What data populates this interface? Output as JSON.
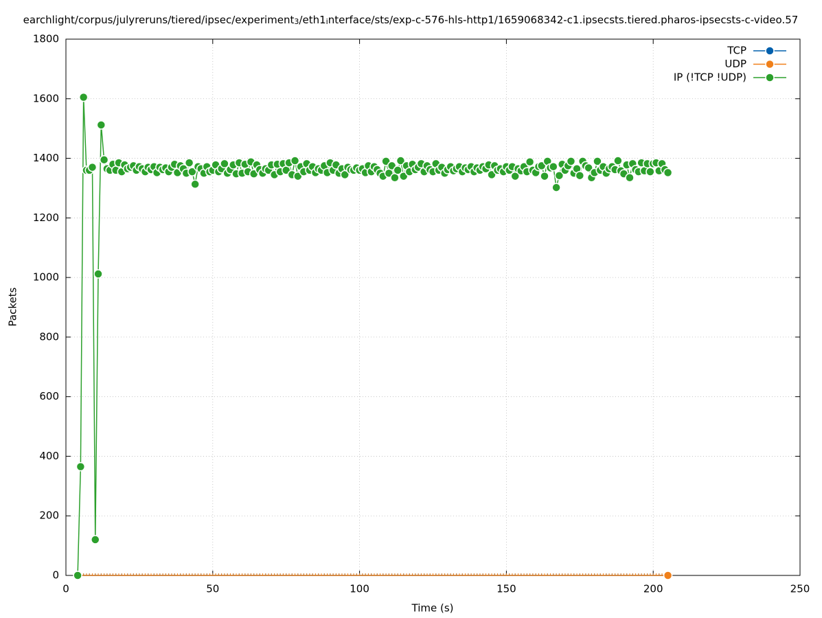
{
  "chart_data": {
    "type": "line",
    "title_parts": [
      "earchlight/corpus/julyreruns/tiered/ipsec/experiment",
      "3",
      "/eth1",
      "i",
      "nterface/sts/exp-c-576-hls-http1/1659068342-c1.ipsecsts.tiered.pharos-ipsecsts-c-video.57"
    ],
    "xlabel": "Time (s)",
    "ylabel": "Packets",
    "xlim": [
      0,
      250
    ],
    "xticks": [
      0,
      50,
      100,
      150,
      200,
      250
    ],
    "ylim": [
      0,
      1800
    ],
    "yticks": [
      0,
      200,
      400,
      600,
      800,
      1000,
      1200,
      1400,
      1600,
      1800
    ],
    "grid": true,
    "legend": "top-right",
    "x": [
      4,
      5,
      6,
      7,
      8,
      9,
      10,
      11,
      12,
      13,
      14,
      15,
      16,
      17,
      18,
      19,
      20,
      21,
      22,
      23,
      24,
      25,
      26,
      27,
      28,
      29,
      30,
      31,
      32,
      33,
      34,
      35,
      36,
      37,
      38,
      39,
      40,
      41,
      42,
      43,
      44,
      45,
      46,
      47,
      48,
      49,
      50,
      51,
      52,
      53,
      54,
      55,
      56,
      57,
      58,
      59,
      60,
      61,
      62,
      63,
      64,
      65,
      66,
      67,
      68,
      69,
      70,
      71,
      72,
      73,
      74,
      75,
      76,
      77,
      78,
      79,
      80,
      81,
      82,
      83,
      84,
      85,
      86,
      87,
      88,
      89,
      90,
      91,
      92,
      93,
      94,
      95,
      96,
      97,
      98,
      99,
      100,
      101,
      102,
      103,
      104,
      105,
      106,
      107,
      108,
      109,
      110,
      111,
      112,
      113,
      114,
      115,
      116,
      117,
      118,
      119,
      120,
      121,
      122,
      123,
      124,
      125,
      126,
      127,
      128,
      129,
      130,
      131,
      132,
      133,
      134,
      135,
      136,
      137,
      138,
      139,
      140,
      141,
      142,
      143,
      144,
      145,
      146,
      147,
      148,
      149,
      150,
      151,
      152,
      153,
      154,
      155,
      156,
      157,
      158,
      159,
      160,
      161,
      162,
      163,
      164,
      165,
      166,
      167,
      168,
      169,
      170,
      171,
      172,
      173,
      174,
      175,
      176,
      177,
      178,
      179,
      180,
      181,
      182,
      183,
      184,
      185,
      186,
      187,
      188,
      189,
      190,
      191,
      192,
      193,
      194,
      195,
      196,
      197,
      198,
      199,
      200,
      201,
      202,
      203,
      204,
      205
    ],
    "series": [
      {
        "name": "TCP",
        "color": "#0060ad",
        "values": [
          0,
          0,
          0,
          0,
          0,
          0,
          0,
          0,
          0,
          0,
          0,
          0,
          0,
          0,
          0,
          0,
          0,
          0,
          0,
          0,
          0,
          0,
          0,
          0,
          0,
          0,
          0,
          0,
          0,
          0,
          0,
          0,
          0,
          0,
          0,
          0,
          0,
          0,
          0,
          0,
          0,
          0,
          0,
          0,
          0,
          0,
          0,
          0,
          0,
          0,
          0,
          0,
          0,
          0,
          0,
          0,
          0,
          0,
          0,
          0,
          0,
          0,
          0,
          0,
          0,
          0,
          0,
          0,
          0,
          0,
          0,
          0,
          0,
          0,
          0,
          0,
          0,
          0,
          0,
          0,
          0,
          0,
          0,
          0,
          0,
          0,
          0,
          0,
          0,
          0,
          0,
          0,
          0,
          0,
          0,
          0,
          0,
          0,
          0,
          0,
          0,
          0,
          0,
          0,
          0,
          0,
          0,
          0,
          0,
          0,
          0,
          0,
          0,
          0,
          0,
          0,
          0,
          0,
          0,
          0,
          0,
          0,
          0,
          0,
          0,
          0,
          0,
          0,
          0,
          0,
          0,
          0,
          0,
          0,
          0,
          0,
          0,
          0,
          0,
          0,
          0,
          0,
          0,
          0,
          0,
          0,
          0,
          0,
          0,
          0,
          0,
          0,
          0,
          0,
          0,
          0,
          0,
          0,
          0,
          0,
          0,
          0,
          0,
          0,
          0,
          0,
          0,
          0,
          0,
          0,
          0,
          0,
          0,
          0,
          0,
          0,
          0,
          0,
          0,
          0,
          0,
          0,
          0,
          0,
          0,
          0,
          0,
          0,
          0,
          0,
          0,
          0,
          0,
          0,
          0,
          0,
          0,
          0,
          0,
          0,
          0,
          0
        ]
      },
      {
        "name": "UDP",
        "color": "#f0801a",
        "values": [
          0,
          0,
          0,
          0,
          0,
          0,
          0,
          0,
          0,
          0,
          0,
          0,
          0,
          0,
          0,
          0,
          0,
          0,
          0,
          0,
          0,
          0,
          0,
          0,
          0,
          0,
          0,
          0,
          0,
          0,
          0,
          0,
          0,
          0,
          0,
          0,
          0,
          0,
          0,
          0,
          0,
          0,
          0,
          0,
          0,
          0,
          0,
          0,
          0,
          0,
          0,
          0,
          0,
          0,
          0,
          0,
          0,
          0,
          0,
          0,
          0,
          0,
          0,
          0,
          0,
          0,
          0,
          0,
          0,
          0,
          0,
          0,
          0,
          0,
          0,
          0,
          0,
          0,
          0,
          0,
          0,
          0,
          0,
          0,
          0,
          0,
          0,
          0,
          0,
          0,
          0,
          0,
          0,
          0,
          0,
          0,
          0,
          0,
          0,
          0,
          0,
          0,
          0,
          0,
          0,
          0,
          0,
          0,
          0,
          0,
          0,
          0,
          0,
          0,
          0,
          0,
          0,
          0,
          0,
          0,
          0,
          0,
          0,
          0,
          0,
          0,
          0,
          0,
          0,
          0,
          0,
          0,
          0,
          0,
          0,
          0,
          0,
          0,
          0,
          0,
          0,
          0,
          0,
          0,
          0,
          0,
          0,
          0,
          0,
          0,
          0,
          0,
          0,
          0,
          0,
          0,
          0,
          0,
          0,
          0,
          0,
          0,
          0,
          0,
          0,
          0,
          0,
          0,
          0,
          0,
          0,
          0,
          0,
          0,
          0,
          0,
          0,
          0,
          0,
          0,
          0,
          0,
          0,
          0,
          0,
          0,
          0,
          0,
          0,
          0,
          0,
          0,
          0,
          0,
          0,
          0,
          0,
          0,
          0,
          0,
          0,
          0
        ]
      },
      {
        "name": "IP (!TCP  !UDP)",
        "color": "#2ca02c",
        "values": [
          0,
          365,
          1605,
          1360,
          1360,
          1370,
          120,
          1012,
          1512,
          1395,
          1365,
          1360,
          1380,
          1360,
          1385,
          1355,
          1378,
          1365,
          1370,
          1375,
          1360,
          1372,
          1365,
          1355,
          1370,
          1362,
          1372,
          1352,
          1370,
          1362,
          1368,
          1355,
          1370,
          1380,
          1352,
          1375,
          1365,
          1350,
          1385,
          1355,
          1313,
          1372,
          1365,
          1350,
          1372,
          1355,
          1360,
          1378,
          1355,
          1365,
          1382,
          1350,
          1362,
          1378,
          1348,
          1385,
          1350,
          1380,
          1355,
          1388,
          1348,
          1378,
          1362,
          1350,
          1365,
          1360,
          1378,
          1345,
          1380,
          1355,
          1382,
          1360,
          1385,
          1345,
          1392,
          1340,
          1372,
          1355,
          1382,
          1360,
          1372,
          1352,
          1365,
          1360,
          1375,
          1352,
          1385,
          1360,
          1378,
          1350,
          1365,
          1345,
          1370,
          1362,
          1360,
          1368,
          1360,
          1365,
          1352,
          1375,
          1355,
          1372,
          1362,
          1350,
          1340,
          1390,
          1350,
          1375,
          1335,
          1360,
          1392,
          1340,
          1375,
          1355,
          1380,
          1362,
          1370,
          1382,
          1355,
          1375,
          1362,
          1355,
          1382,
          1360,
          1370,
          1350,
          1362,
          1372,
          1358,
          1365,
          1372,
          1355,
          1368,
          1362,
          1372,
          1355,
          1368,
          1360,
          1372,
          1365,
          1378,
          1345,
          1375,
          1360,
          1365,
          1355,
          1372,
          1360,
          1372,
          1340,
          1365,
          1358,
          1372,
          1355,
          1388,
          1360,
          1352,
          1372,
          1375,
          1340,
          1390,
          1368,
          1372,
          1302,
          1342,
          1380,
          1360,
          1375,
          1390,
          1350,
          1365,
          1342,
          1390,
          1375,
          1368,
          1335,
          1352,
          1390,
          1360,
          1372,
          1350,
          1365,
          1372,
          1362,
          1392,
          1358,
          1348,
          1378,
          1335,
          1382,
          1362,
          1355,
          1385,
          1358,
          1382,
          1355,
          1382,
          1385,
          1358,
          1382,
          1362,
          1352
        ]
      }
    ]
  }
}
